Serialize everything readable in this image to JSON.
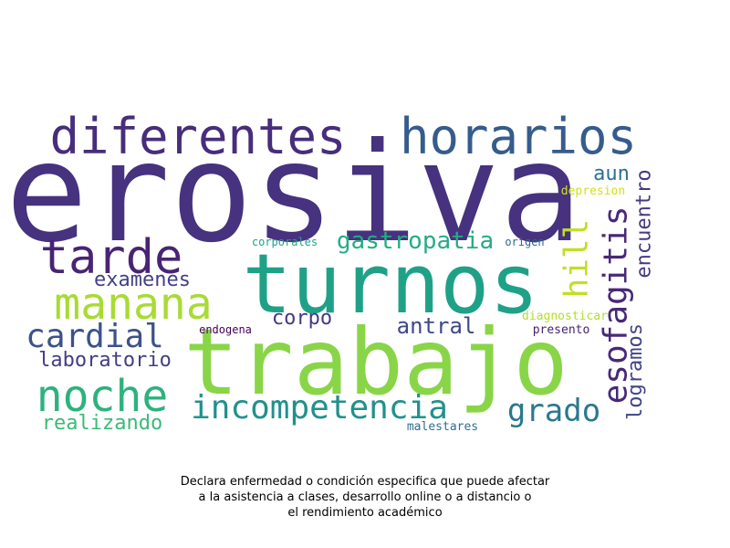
{
  "words": [
    {
      "text": "erosiva",
      "color": "#46327e"
    },
    {
      "text": "turnos",
      "color": "#1fa187"
    },
    {
      "text": "trabajo",
      "color": "#89d548"
    },
    {
      "text": "diferentes",
      "color": "#472d7b"
    },
    {
      "text": "horarios",
      "color": "#365c8d"
    },
    {
      "text": "tarde",
      "color": "#482475"
    },
    {
      "text": "manana",
      "color": "#a8db34"
    },
    {
      "text": "noche",
      "color": "#2db27d"
    },
    {
      "text": "cardial",
      "color": "#3b528b"
    },
    {
      "text": "incompetencia",
      "color": "#21918c"
    },
    {
      "text": "esofagitis",
      "color": "#482878"
    },
    {
      "text": "gastropatia",
      "color": "#25ac82"
    },
    {
      "text": "grado",
      "color": "#2a788e"
    },
    {
      "text": "hill",
      "color": "#c2df23"
    },
    {
      "text": "examenes",
      "color": "#424086"
    },
    {
      "text": "laboratorio",
      "color": "#433e85"
    },
    {
      "text": "realizando",
      "color": "#3bbb75"
    },
    {
      "text": "corpo",
      "color": "#453882"
    },
    {
      "text": "antral",
      "color": "#3e4989"
    },
    {
      "text": "encuentro",
      "color": "#443a83"
    },
    {
      "text": "logramos",
      "color": "#414487"
    },
    {
      "text": "aun",
      "color": "#2c728e"
    },
    {
      "text": "depresion",
      "color": "#d0e11c"
    },
    {
      "text": "corporales",
      "color": "#20a486"
    },
    {
      "text": "origen",
      "color": "#31688e"
    },
    {
      "text": "endogena",
      "color": "#440154"
    },
    {
      "text": "diagnosticar",
      "color": "#b5de2b"
    },
    {
      "text": "presento",
      "color": "#482173"
    },
    {
      "text": "malestares",
      "color": "#2e6f8e"
    }
  ],
  "caption": {
    "line1": "Declara enfermedad o condición especifica que puede afectar",
    "line2": "a la asistencia a clases, desarrollo online o a distancio o",
    "line3": "el rendimiento académico"
  }
}
